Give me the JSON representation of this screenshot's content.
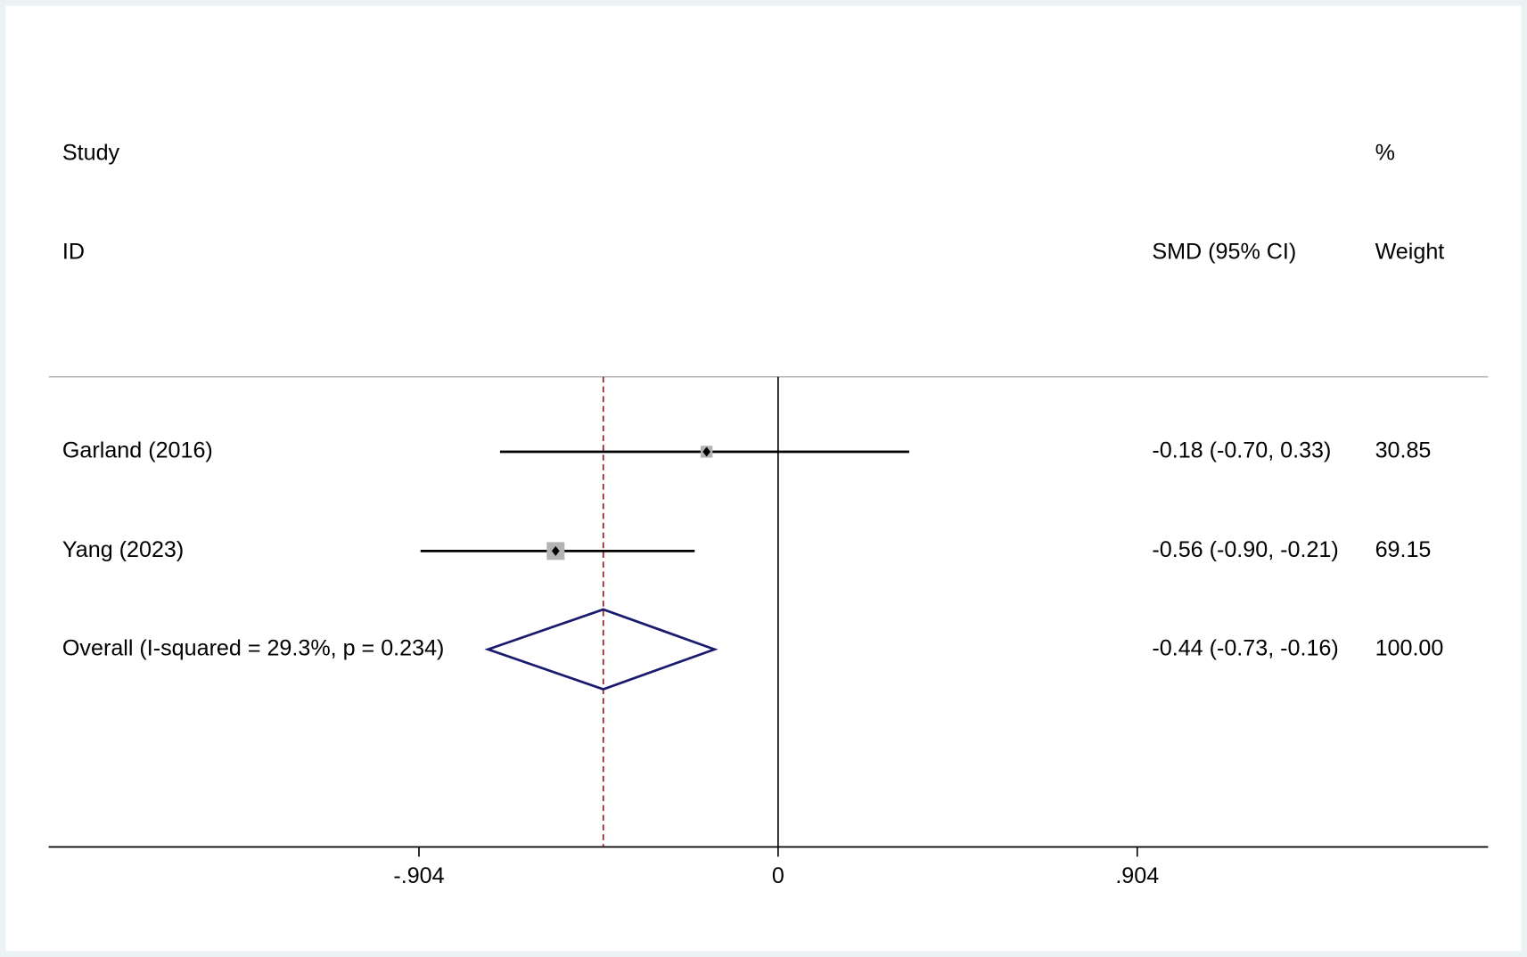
{
  "chart_data": {
    "type": "forest",
    "headers": {
      "study_top": "Study",
      "study": "ID",
      "effect": "SMD (95% CI)",
      "weight_top": "%",
      "weight": "Weight"
    },
    "categories": [
      "Garland (2016)",
      "Yang (2023)"
    ],
    "values": [
      -0.18,
      -0.56
    ],
    "ci_low": [
      -0.7,
      -0.9
    ],
    "ci_high": [
      0.33,
      -0.21
    ],
    "value_labels": [
      "-0.18 (-0.70, 0.33)",
      "-0.56 (-0.90, -0.21)"
    ],
    "weights": [
      30.85,
      69.15
    ],
    "overall": {
      "name": "Overall  (I-squared = 29.3%, p = 0.234)",
      "value": -0.44,
      "ci_low": -0.73,
      "ci_high": -0.16,
      "value_label": "-0.44 (-0.73, -0.16)",
      "weight": 100,
      "weight_label": "100.00",
      "line_color": "#8b1a1a",
      "color": "#1a1a6e"
    },
    "box_color": "#b3b3b3",
    "xlim": [
      -1.836,
      1.787
    ],
    "xticks": [
      {
        "value": -0.904,
        "label": "-.904"
      },
      0,
      {
        "value": 0.904,
        "label": ".904"
      }
    ]
  }
}
